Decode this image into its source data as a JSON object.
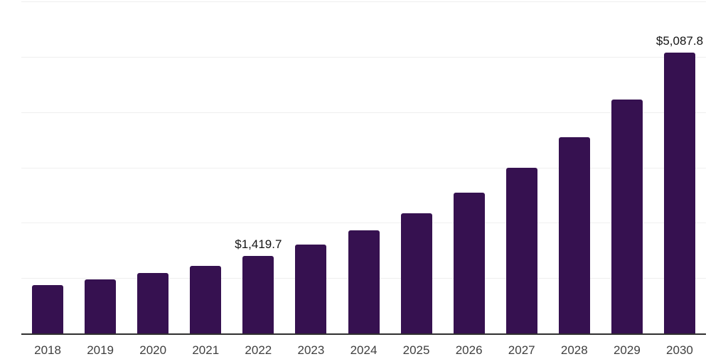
{
  "chart_data": {
    "type": "bar",
    "title": "",
    "xlabel": "",
    "ylabel": "",
    "categories": [
      "2018",
      "2019",
      "2020",
      "2021",
      "2022",
      "2023",
      "2024",
      "2025",
      "2026",
      "2027",
      "2028",
      "2029",
      "2030"
    ],
    "values": [
      885,
      985,
      1100,
      1240,
      1419.7,
      1625,
      1880,
      2185,
      2555,
      3005,
      3565,
      4245,
      5087.8
    ],
    "data_labels": {
      "2022": "$1,419.7",
      "2030": "$5,087.8"
    },
    "ylim": [
      0,
      6000
    ],
    "gridline_step": 1000,
    "grid": true,
    "legend_position": "none",
    "colors": {
      "bar": "#361150",
      "gridline": "#efefef",
      "axis": "#2f2f2f",
      "tick_label": "#3f3f3f",
      "data_label": "#141414",
      "background": "#ffffff"
    }
  }
}
